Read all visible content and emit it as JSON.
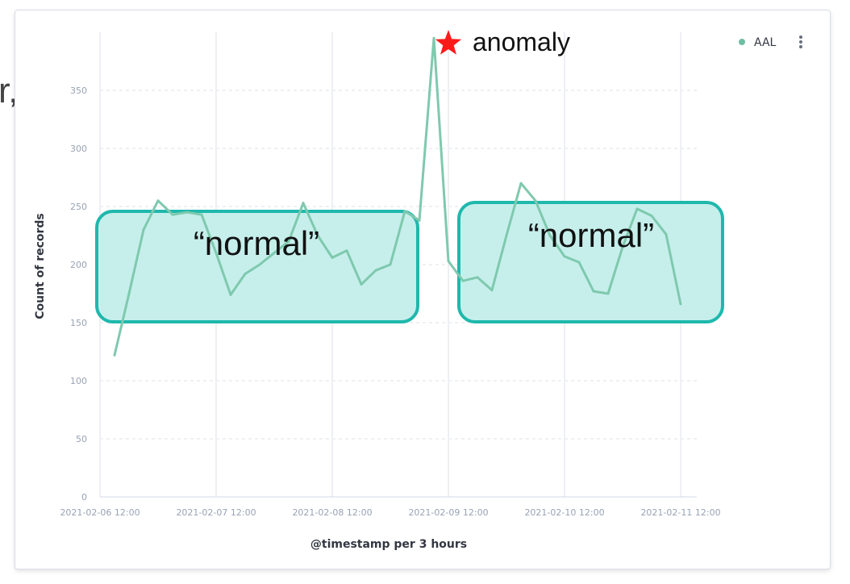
{
  "fragment_text": "r,",
  "legend": {
    "label": "AAL",
    "color": "#6dbfa3"
  },
  "annotations": {
    "normal_left": "“normal”",
    "normal_right": "“normal”",
    "anomaly": "anomaly",
    "box_stroke": "#1fb8ac",
    "box_fill": "#c6efec",
    "star_color": "#ff1a1a"
  },
  "chart_data": {
    "type": "line",
    "title": "",
    "xlabel": "@timestamp per 3 hours",
    "ylabel": "Count of records",
    "ylim": [
      0,
      400
    ],
    "yticks": [
      0,
      50,
      100,
      150,
      200,
      250,
      300,
      350
    ],
    "xticks": [
      "2021-02-06 12:00",
      "2021-02-07 12:00",
      "2021-02-08 12:00",
      "2021-02-09 12:00",
      "2021-02-10 12:00",
      "2021-02-11 12:00"
    ],
    "grid": true,
    "legend_position": "top-right",
    "series": [
      {
        "name": "AAL",
        "color": "#7fc9ae",
        "points": [
          [
            "2021-02-06 15:00",
            122
          ],
          [
            "2021-02-06 18:00",
            175
          ],
          [
            "2021-02-06 21:00",
            230
          ],
          [
            "2021-02-07 00:00",
            255
          ],
          [
            "2021-02-07 03:00",
            243
          ],
          [
            "2021-02-07 06:00",
            245
          ],
          [
            "2021-02-07 09:00",
            243
          ],
          [
            "2021-02-07 12:00",
            210
          ],
          [
            "2021-02-07 15:00",
            174
          ],
          [
            "2021-02-07 18:00",
            192
          ],
          [
            "2021-02-07 21:00",
            200
          ],
          [
            "2021-02-08 00:00",
            210
          ],
          [
            "2021-02-08 03:00",
            220
          ],
          [
            "2021-02-08 06:00",
            253
          ],
          [
            "2021-02-08 09:00",
            225
          ],
          [
            "2021-02-08 12:00",
            206
          ],
          [
            "2021-02-08 15:00",
            212
          ],
          [
            "2021-02-08 18:00",
            183
          ],
          [
            "2021-02-08 21:00",
            195
          ],
          [
            "2021-02-09 00:00",
            200
          ],
          [
            "2021-02-09 03:00",
            246
          ],
          [
            "2021-02-09 06:00",
            238
          ],
          [
            "2021-02-09 09:00",
            395
          ],
          [
            "2021-02-09 12:00",
            203
          ],
          [
            "2021-02-09 15:00",
            186
          ],
          [
            "2021-02-09 18:00",
            189
          ],
          [
            "2021-02-09 21:00",
            178
          ],
          [
            "2021-02-10 00:00",
            225
          ],
          [
            "2021-02-10 03:00",
            270
          ],
          [
            "2021-02-10 06:00",
            255
          ],
          [
            "2021-02-10 09:00",
            225
          ],
          [
            "2021-02-10 12:00",
            207
          ],
          [
            "2021-02-10 15:00",
            202
          ],
          [
            "2021-02-10 18:00",
            177
          ],
          [
            "2021-02-10 21:00",
            175
          ],
          [
            "2021-02-11 00:00",
            215
          ],
          [
            "2021-02-11 03:00",
            248
          ],
          [
            "2021-02-11 06:00",
            242
          ],
          [
            "2021-02-11 09:00",
            226
          ],
          [
            "2021-02-11 12:00",
            166
          ]
        ]
      }
    ]
  }
}
